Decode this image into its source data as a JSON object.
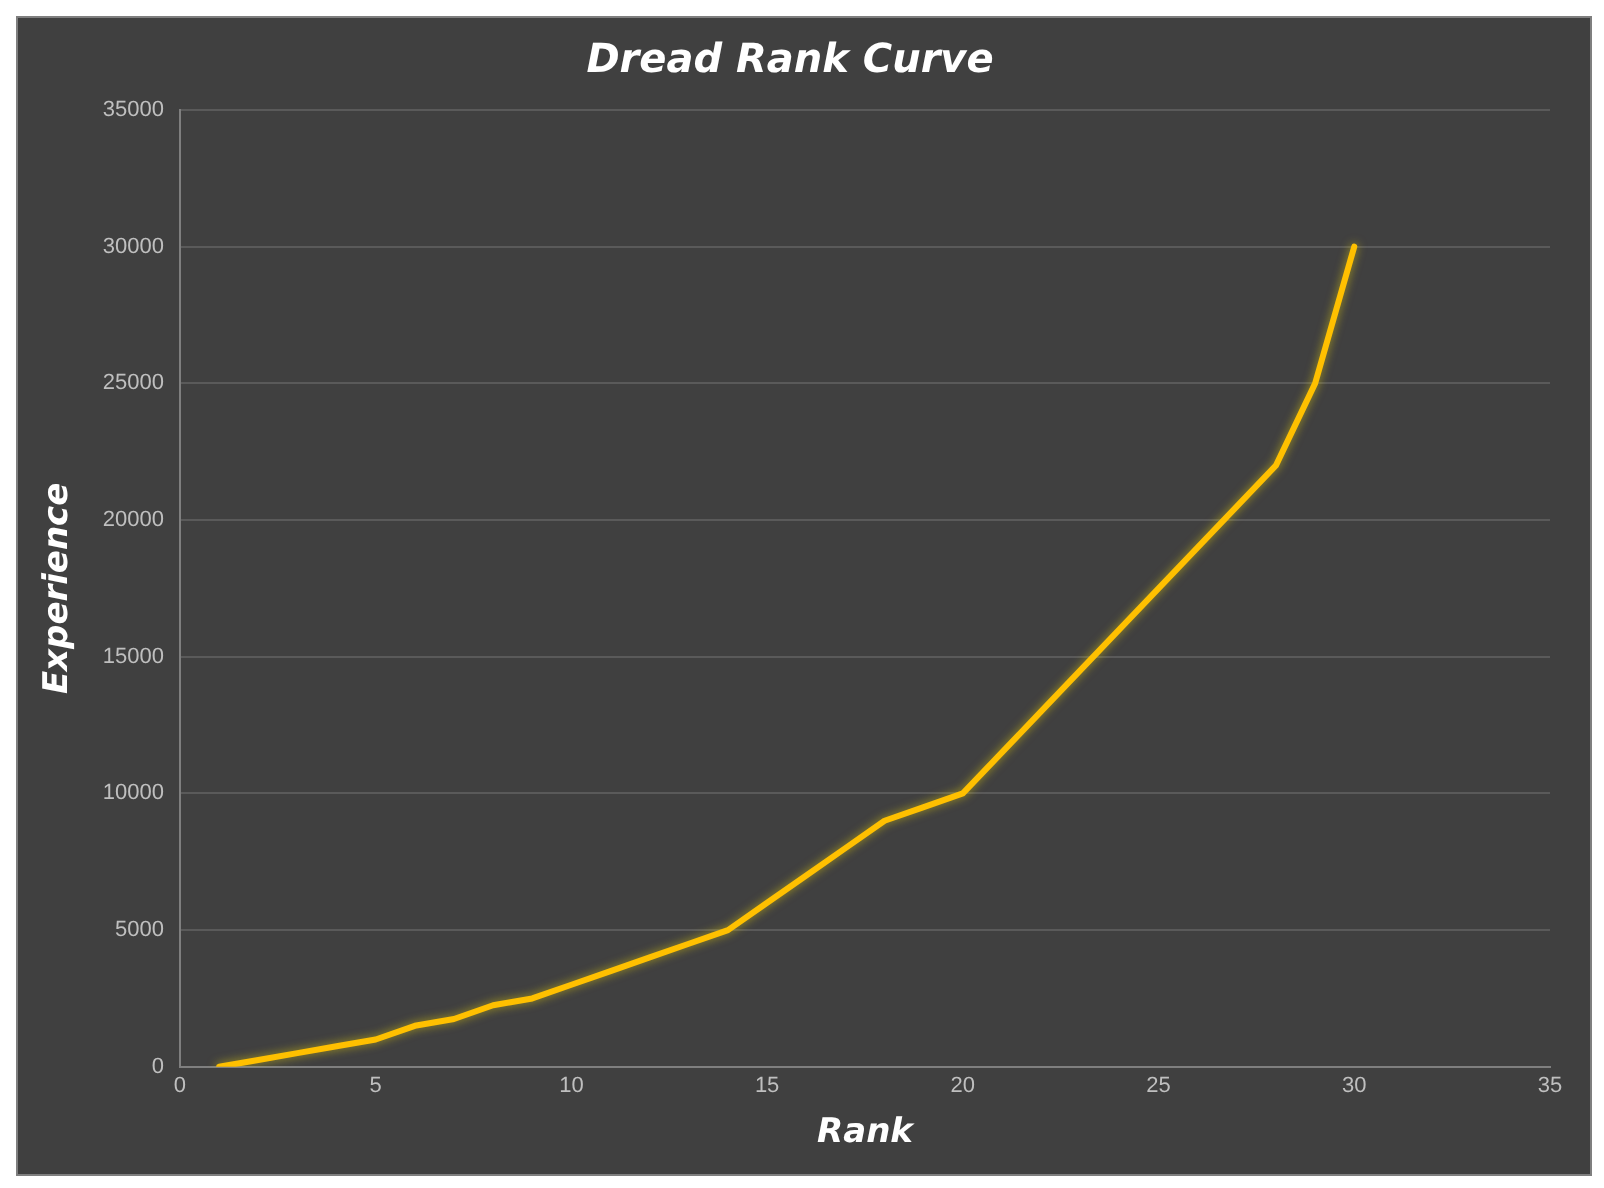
{
  "chart_data": {
    "type": "line",
    "title": "Dread Rank Curve",
    "xlabel": "Rank",
    "ylabel": "Experience",
    "x": [
      1,
      2,
      3,
      4,
      5,
      6,
      7,
      8,
      9,
      10,
      11,
      12,
      13,
      14,
      15,
      16,
      17,
      18,
      19,
      20,
      21,
      22,
      23,
      24,
      25,
      26,
      27,
      28,
      29,
      30
    ],
    "series": [
      {
        "color": "#ffc000",
        "values": [
          0,
          250,
          500,
          750,
          1000,
          1500,
          1750,
          2250,
          2500,
          3000,
          3500,
          4000,
          4500,
          5000,
          6000,
          7000,
          8000,
          9000,
          9500,
          10000,
          11500,
          13000,
          14500,
          16000,
          17500,
          19000,
          20500,
          22000,
          25000,
          30000
        ]
      }
    ],
    "xlim": [
      0,
      35
    ],
    "xticks": [
      0,
      5,
      10,
      15,
      20,
      25,
      30,
      35
    ],
    "ylim": [
      0,
      35000
    ],
    "yticks": [
      0,
      5000,
      10000,
      15000,
      20000,
      25000,
      30000,
      35000
    ],
    "grid": "y",
    "legend": false,
    "marker": "none",
    "line_style": "solid"
  }
}
